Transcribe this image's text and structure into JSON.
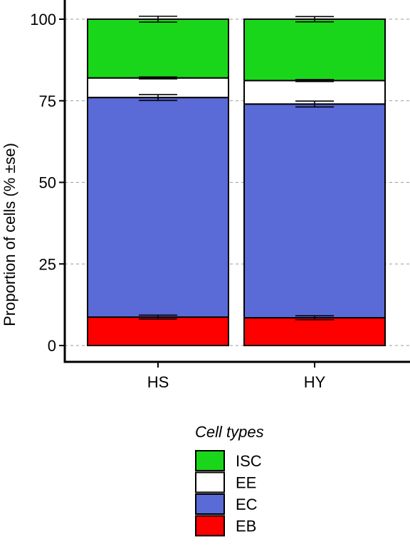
{
  "chart_data": {
    "type": "bar",
    "stacked": true,
    "categories": [
      "HS",
      "HY"
    ],
    "ylabel": "Proportion of cells (% ±se)",
    "ylim": [
      0,
      105
    ],
    "yticks": [
      0,
      25,
      50,
      75,
      100
    ],
    "grid": "dashed horizontal",
    "legend_title": "Cell types",
    "legend_position": "bottom",
    "legend": [
      {
        "name": "ISC",
        "color": "#1ad61a"
      },
      {
        "name": "EE",
        "color": "#ffffff"
      },
      {
        "name": "EC",
        "color": "#5a6ad6"
      },
      {
        "name": "EB",
        "color": "#ff0000"
      }
    ],
    "series": [
      {
        "name": "EB",
        "color": "#ff0000",
        "values": [
          8.7,
          8.5
        ],
        "se": [
          0.6,
          0.6
        ]
      },
      {
        "name": "EC",
        "color": "#5a6ad6",
        "values": [
          67.3,
          65.5
        ],
        "se": [
          0.9,
          0.9
        ]
      },
      {
        "name": "EE",
        "color": "#ffffff",
        "values": [
          6.0,
          7.2
        ],
        "se": [
          0.3,
          0.3
        ]
      },
      {
        "name": "ISC",
        "color": "#1ad61a",
        "values": [
          18.0,
          18.8
        ],
        "se": [
          0.9,
          0.8
        ]
      }
    ]
  }
}
